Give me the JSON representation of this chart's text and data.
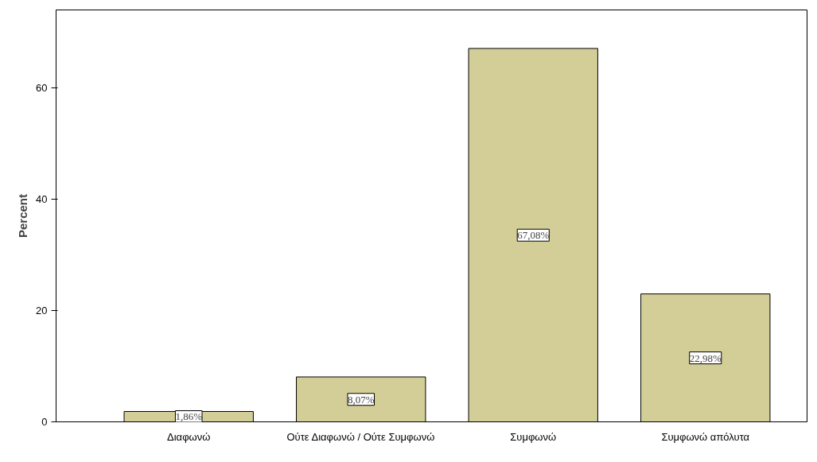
{
  "chart_data": {
    "type": "bar",
    "ylabel": "Percent",
    "categories": [
      "Διαφωνώ",
      "Ούτε Διαφωνώ / Ούτε Συμφωνώ",
      "Συμφωνώ",
      "Συμφωνώ απόλυτα"
    ],
    "values": [
      1.86,
      8.07,
      67.08,
      22.98
    ],
    "value_labels": [
      "1,86%",
      "8,07%",
      "67,08%",
      "22,98%"
    ],
    "color": "#d3ce97",
    "ylim": [
      0,
      74
    ],
    "yticks": [
      0,
      20,
      40,
      60
    ],
    "grid": false
  }
}
